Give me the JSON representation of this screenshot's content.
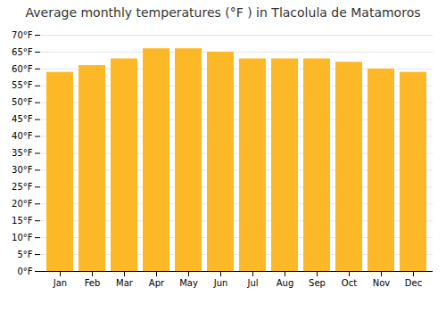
{
  "chart_data": {
    "type": "bar",
    "title": "Average monthly temperatures (°F ) in Tlacolula de Matamoros",
    "categories": [
      "Jan",
      "Feb",
      "Mar",
      "Apr",
      "May",
      "Jun",
      "Jul",
      "Aug",
      "Sep",
      "Oct",
      "Nov",
      "Dec"
    ],
    "values": [
      59,
      61,
      63,
      66,
      66,
      65,
      63,
      63,
      63,
      62,
      60,
      59
    ],
    "color": "#FDB827",
    "ylim": [
      0,
      70
    ],
    "yticks": [
      {
        "value": 0,
        "label": "0°F"
      },
      {
        "value": 5,
        "label": "5°F"
      },
      {
        "value": 10,
        "label": "10°F"
      },
      {
        "value": 15,
        "label": "15°F"
      },
      {
        "value": 20,
        "label": "20°F"
      },
      {
        "value": 25,
        "label": "25°F"
      },
      {
        "value": 30,
        "label": "30°F"
      },
      {
        "value": 35,
        "label": "35°F"
      },
      {
        "value": 40,
        "label": "40°F"
      },
      {
        "value": 45,
        "label": "45°F"
      },
      {
        "value": 50,
        "label": "50°F"
      },
      {
        "value": 55,
        "label": "55°F"
      },
      {
        "value": 60,
        "label": "60°F"
      },
      {
        "value": 65,
        "label": "65°F"
      },
      {
        "value": 70,
        "label": "70°F"
      }
    ],
    "grid": true
  }
}
